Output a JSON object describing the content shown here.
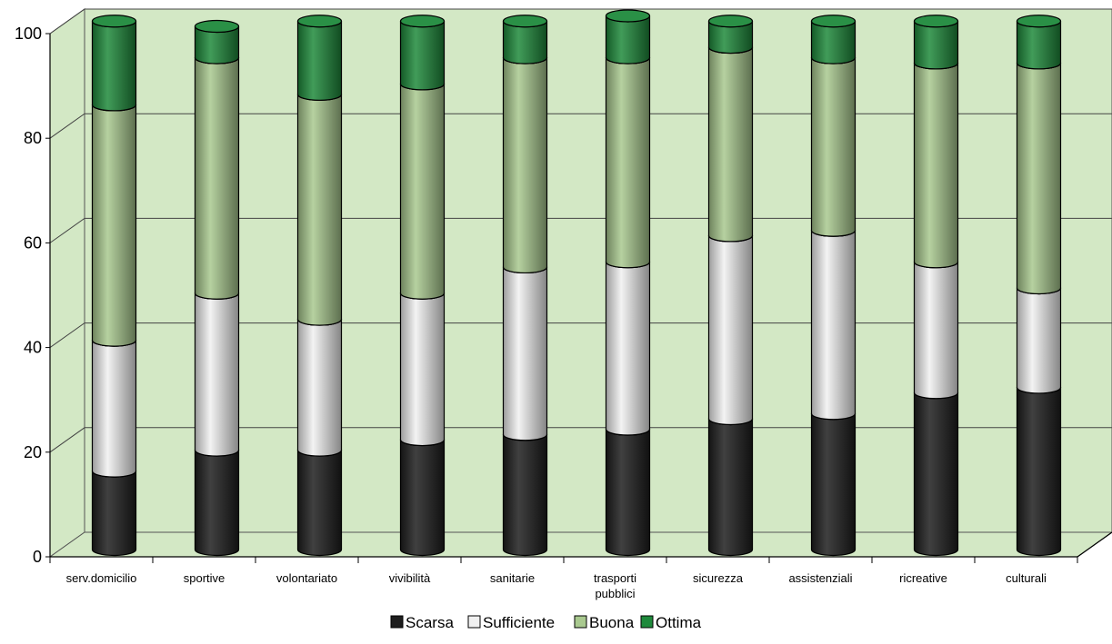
{
  "chart_data": {
    "type": "bar",
    "stacked": true,
    "three_d": true,
    "categories": [
      "serv.domicilio",
      "sportive",
      "volontariato",
      "vivibilità",
      "sanitarie",
      "trasporti pubblici",
      "sicurezza",
      "assistenziali",
      "ricreative",
      "culturali"
    ],
    "series": [
      {
        "name": "Scarsa",
        "color": "#1e1e1e",
        "values": [
          15,
          19,
          19,
          21,
          22,
          23,
          25,
          26,
          30,
          31
        ]
      },
      {
        "name": "Sufficiente",
        "color": "#f1f1f1",
        "values": [
          25,
          30,
          25,
          28,
          32,
          32,
          35,
          35,
          25,
          19
        ]
      },
      {
        "name": "Buona",
        "color": "#a9c98f",
        "values": [
          45,
          45,
          43,
          40,
          40,
          39,
          36,
          33,
          38,
          43
        ]
      },
      {
        "name": "Ottima",
        "color": "#1f8a3c",
        "values": [
          16,
          6,
          14,
          12,
          7,
          8,
          5,
          7,
          8,
          8
        ]
      }
    ],
    "yticks": [
      0,
      20,
      40,
      60,
      80,
      100
    ],
    "ylim": [
      0,
      100
    ],
    "grid": true,
    "legend_position": "bottom",
    "background_color": "#d3e8c5"
  }
}
